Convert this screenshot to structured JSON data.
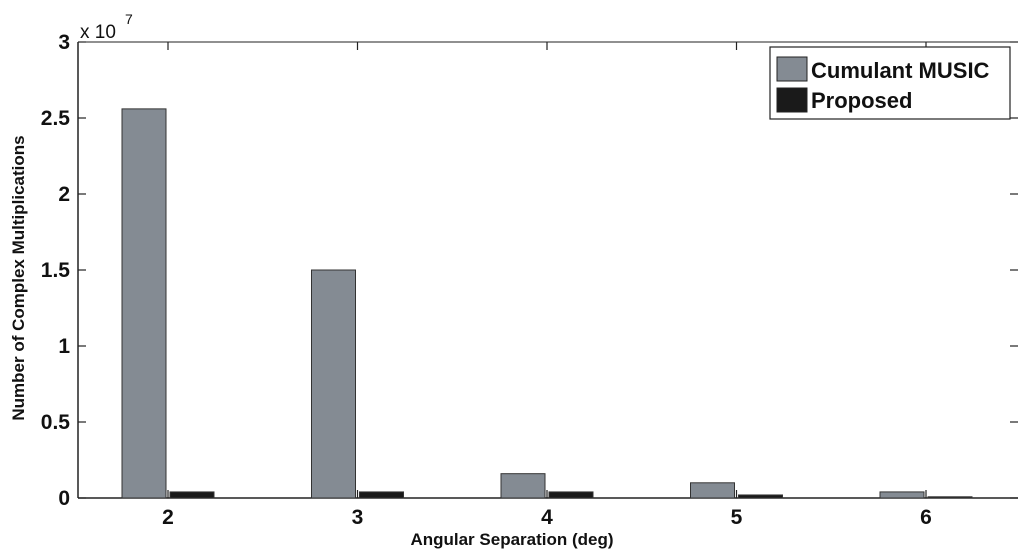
{
  "chart_data": {
    "type": "bar",
    "categories": [
      "2",
      "3",
      "4",
      "5",
      "6"
    ],
    "series": [
      {
        "name": "Cumulant MUSIC",
        "values": [
          25600000,
          15000000,
          1600000,
          1000000,
          400000
        ],
        "color": "#848b93"
      },
      {
        "name": "Proposed",
        "values": [
          400000,
          400000,
          400000,
          200000,
          80000
        ],
        "color": "#1a1a1a"
      }
    ],
    "xlabel": "Angular Separation (deg)",
    "ylabel": "Number of Complex Multiplications",
    "ylim": [
      0,
      30000000
    ],
    "yticks": [
      {
        "value": 0,
        "label": "0"
      },
      {
        "value": 5000000,
        "label": "0.5"
      },
      {
        "value": 10000000,
        "label": "1"
      },
      {
        "value": 15000000,
        "label": "1.5"
      },
      {
        "value": 20000000,
        "label": "2"
      },
      {
        "value": 25000000,
        "label": "2.5"
      },
      {
        "value": 30000000,
        "label": "3"
      }
    ],
    "y_multiplier": {
      "base": "x 10",
      "exponent": "7"
    },
    "legend_position": "top-right",
    "grid": false
  }
}
